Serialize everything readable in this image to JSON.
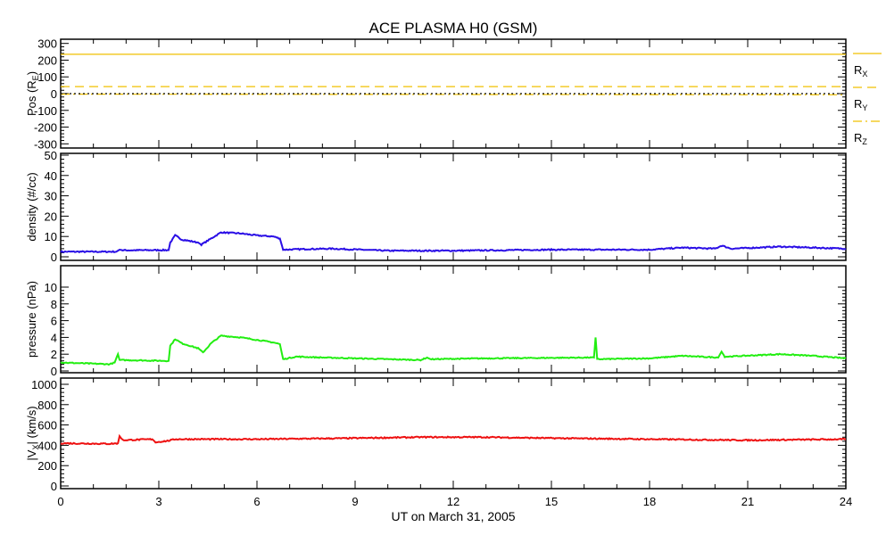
{
  "chart_data": {
    "type": "line",
    "title": "ACE PLASMA H0 (GSM)",
    "xlabel": "UT on March 31, 2005",
    "xlim": [
      0,
      24
    ],
    "xticks": [
      "0",
      "3",
      "6",
      "9",
      "12",
      "15",
      "18",
      "21",
      "24"
    ],
    "panels": [
      {
        "ylabel": "Pos (R",
        "ylabel_sub": "E",
        "ylabel_end": ")",
        "ylim": [
          -325,
          325
        ],
        "yticks": [
          "-300",
          "-200",
          "-100",
          "0",
          "100",
          "200",
          "300"
        ],
        "ytick_values": [
          -300,
          -200,
          -100,
          0,
          100,
          200,
          300
        ],
        "series": [
          {
            "name": "R",
            "sub": "X",
            "color": "#f0c000",
            "style": "solid",
            "x": [
              0,
              24
            ],
            "y": [
              235,
              235
            ]
          },
          {
            "name": "R",
            "sub": "Y",
            "color": "#f0c000",
            "style": "dashed",
            "x": [
              0,
              24
            ],
            "y": [
              42,
              42
            ]
          },
          {
            "name": "R",
            "sub": "Z",
            "color": "#f0c000",
            "style": "dashdot",
            "x": [
              0,
              24
            ],
            "y": [
              -3,
              -7
            ]
          },
          {
            "name": "zero",
            "color": "#000000",
            "style": "dotted",
            "x": [
              0,
              24
            ],
            "y": [
              0,
              0
            ]
          }
        ],
        "legend": true
      },
      {
        "ylabel": "density (#/cc)",
        "ylim": [
          0,
          50
        ],
        "yticks": [
          "0",
          "10",
          "20",
          "30",
          "40",
          "50"
        ],
        "ytick_values": [
          0,
          10,
          20,
          30,
          40,
          50
        ],
        "series": [
          {
            "name": "density",
            "color": "#2a0ee6",
            "x": [
              0,
              1.7,
              1.8,
              1.9,
              3.3,
              3.35,
              3.5,
              3.7,
              4.2,
              4.3,
              4.6,
              4.9,
              5.5,
              6.0,
              6.5,
              6.7,
              6.8,
              7.5,
              8.3,
              10,
              12,
              15,
              18,
              19,
              20,
              20.2,
              20.5,
              22,
              24
            ],
            "y": [
              2.5,
              2.5,
              3.5,
              3.2,
              3.3,
              7,
              10.5,
              8.5,
              7,
              6,
              9,
              12,
              11.5,
              10.5,
              10,
              9,
              3.5,
              3.8,
              4,
              3,
              3,
              3.5,
              3.5,
              4.5,
              4,
              5.5,
              4,
              5,
              4
            ]
          }
        ]
      },
      {
        "ylabel": "pressure (nPa)",
        "ylim": [
          0,
          10
        ],
        "yticks": [
          "0",
          "2",
          "4",
          "6",
          "8",
          "10"
        ],
        "ytick_values": [
          0,
          2,
          4,
          6,
          8,
          10
        ],
        "series": [
          {
            "name": "pressure",
            "color": "#22ee11",
            "x": [
              0,
              1.5,
              1.65,
              1.75,
              1.8,
              3.3,
              3.35,
              3.5,
              3.7,
              4.2,
              4.35,
              4.6,
              4.9,
              5.5,
              6.0,
              6.5,
              6.7,
              6.8,
              7.2,
              8,
              11,
              11.2,
              11.3,
              13,
              16.3,
              16.35,
              16.4,
              18,
              19,
              20.1,
              20.2,
              20.3,
              22,
              23,
              24
            ],
            "y": [
              1.0,
              0.8,
              1.0,
              2.0,
              1.3,
              1.2,
              3.0,
              3.8,
              3.3,
              2.7,
              2.2,
              3.3,
              4.2,
              4.0,
              3.7,
              3.4,
              3.2,
              1.4,
              1.7,
              1.6,
              1.3,
              1.6,
              1.4,
              1.5,
              1.6,
              4.0,
              1.4,
              1.5,
              1.8,
              1.6,
              2.3,
              1.7,
              2.0,
              1.8,
              1.5
            ]
          }
        ]
      },
      {
        "ylabel": "|V",
        "ylabel_sub": "X",
        "ylabel_end": "| (km/s)",
        "ylim": [
          0,
          1000
        ],
        "yticks": [
          "0",
          "200",
          "400",
          "600",
          "800",
          "1000"
        ],
        "ytick_values": [
          0,
          200,
          400,
          600,
          800,
          1000
        ],
        "series": [
          {
            "name": "vx",
            "color": "#ee1111",
            "x": [
              0,
              1.5,
              1.75,
              1.8,
              1.9,
              2.8,
              2.9,
              3.3,
              3.5,
              6,
              9,
              11,
              13,
              15,
              18,
              21,
              24
            ],
            "y": [
              420,
              415,
              420,
              490,
              450,
              460,
              430,
              445,
              460,
              460,
              470,
              480,
              480,
              470,
              460,
              450,
              460
            ]
          }
        ]
      }
    ]
  }
}
